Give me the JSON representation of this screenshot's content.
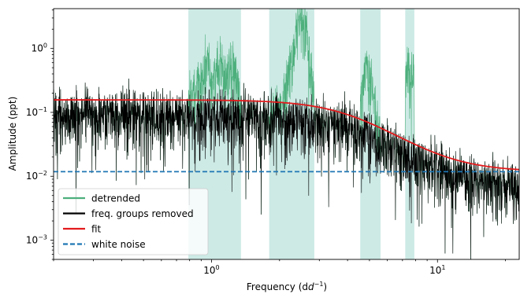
{
  "chart_data": {
    "type": "line",
    "title": "",
    "xlabel": "Frequency (d",
    "xlabel_sup": "−1",
    "xlabel_close": ")",
    "ylabel": "Amplitude (ppt)",
    "xscale": "log",
    "yscale": "log",
    "xlim": [
      0.2,
      23
    ],
    "ylim": [
      0.0005,
      4.2
    ],
    "x_ticks": [
      {
        "value": 1,
        "base": "10",
        "exp": "0"
      },
      {
        "value": 10,
        "base": "10",
        "exp": "1"
      }
    ],
    "y_ticks": [
      {
        "value": 0.001,
        "base": "10",
        "exp": "−3"
      },
      {
        "value": 0.01,
        "base": "10",
        "exp": "−2"
      },
      {
        "value": 0.1,
        "base": "10",
        "exp": "−1"
      },
      {
        "value": 1,
        "base": "10",
        "exp": "0"
      }
    ],
    "shaded_bands": [
      [
        0.79,
        1.35
      ],
      [
        1.8,
        2.85
      ],
      [
        4.55,
        5.6
      ],
      [
        7.2,
        7.9
      ]
    ],
    "band_color": "#cdeae5",
    "white_noise_level": 0.0118,
    "fit": {
      "plateau": 0.145,
      "white": 0.0118,
      "characteristic_freq": 4.3,
      "slope": 3.0
    },
    "detrended_peaks": [
      {
        "x": 0.28,
        "y": 0.23
      },
      {
        "x": 0.86,
        "y": 0.33
      },
      {
        "x": 0.95,
        "y": 0.55
      },
      {
        "x": 1.08,
        "y": 0.6
      },
      {
        "x": 1.22,
        "y": 0.58
      },
      {
        "x": 2.28,
        "y": 0.7
      },
      {
        "x": 2.42,
        "y": 1.3
      },
      {
        "x": 2.5,
        "y": 3.0
      },
      {
        "x": 2.6,
        "y": 0.9
      },
      {
        "x": 4.9,
        "y": 0.35
      },
      {
        "x": 7.5,
        "y": 0.38
      }
    ],
    "series": [
      {
        "name": "detrended",
        "color": "#4daf7c",
        "style": "solid"
      },
      {
        "name": "freq. groups removed",
        "color": "#000000",
        "style": "solid"
      },
      {
        "name": "fit",
        "color": "#e31a1c",
        "style": "solid"
      },
      {
        "name": "white noise",
        "color": "#1f77b4",
        "style": "dashed"
      }
    ],
    "legend_position": "lower-left",
    "grid": false
  }
}
